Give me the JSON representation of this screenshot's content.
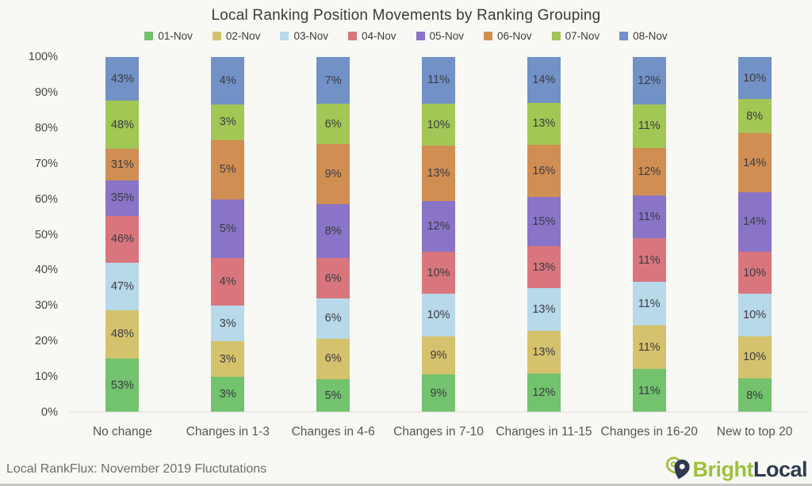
{
  "chart_data": {
    "type": "bar",
    "variant": "stacked-100-normalized",
    "title": "Local Ranking Position Movements by Ranking Grouping",
    "categories": [
      "No change",
      "Changes in 1-3",
      "Changes in 4-6",
      "Changes in 7-10",
      "Changes in 11-15",
      "Changes in 16-20",
      "New to top 20"
    ],
    "series": [
      {
        "name": "01-Nov",
        "color": "#72c26e",
        "values": [
          53,
          3,
          5,
          9,
          12,
          11,
          8
        ]
      },
      {
        "name": "02-Nov",
        "color": "#d5c26c",
        "values": [
          48,
          3,
          6,
          9,
          13,
          11,
          10
        ]
      },
      {
        "name": "03-Nov",
        "color": "#b7d9e9",
        "values": [
          47,
          3,
          6,
          10,
          13,
          11,
          10
        ]
      },
      {
        "name": "04-Nov",
        "color": "#d9767d",
        "values": [
          46,
          4,
          6,
          10,
          13,
          11,
          10
        ]
      },
      {
        "name": "05-Nov",
        "color": "#8974c8",
        "values": [
          35,
          5,
          8,
          12,
          15,
          11,
          14
        ]
      },
      {
        "name": "06-Nov",
        "color": "#d18e52",
        "values": [
          31,
          5,
          9,
          13,
          16,
          12,
          14
        ]
      },
      {
        "name": "07-Nov",
        "color": "#a2c755",
        "values": [
          48,
          3,
          6,
          10,
          13,
          11,
          8
        ]
      },
      {
        "name": "08-Nov",
        "color": "#7291c6",
        "values": [
          43,
          4,
          7,
          11,
          14,
          12,
          10
        ]
      }
    ],
    "value_suffix": "%",
    "yticks": [
      "100%",
      "90%",
      "80%",
      "70%",
      "60%",
      "50%",
      "40%",
      "30%",
      "20%",
      "10%",
      "0%"
    ],
    "ylim": [
      0,
      100
    ],
    "grid": "off",
    "legend_position": "top",
    "note": "Each column is normalized so segment heights are value/column-sum; data labels show raw percentages"
  },
  "footer": {
    "caption": "Local RankFlux: November 2019 Fluctutations",
    "logo": {
      "bright": "Bright",
      "local": "Local",
      "icon": "map-pin-icon",
      "green": "#9ec13c",
      "navy": "#2d3a4e"
    }
  },
  "colors": {
    "background": "#f8f8f5",
    "axis_line": "#e0ddd8",
    "segment_label": "#3b3b42",
    "axis_text": "#454545",
    "footer_text": "#6e6e6e"
  }
}
